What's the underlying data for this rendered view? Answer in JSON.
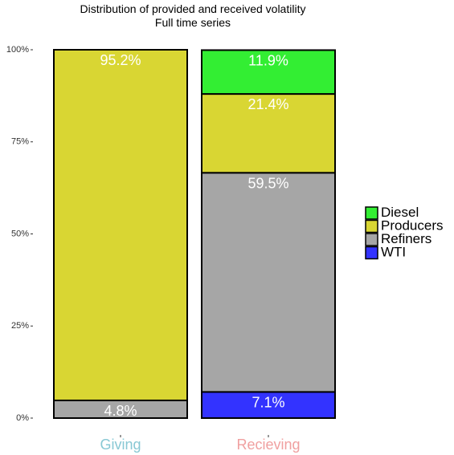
{
  "chart_data": {
    "type": "bar",
    "stacked": true,
    "title": "Distribution of provided and received volatility",
    "subtitle": "Full time series",
    "categories": [
      "Giving",
      "Recieving"
    ],
    "category_colors": [
      "#88c8d4",
      "#f0a0a0"
    ],
    "ylim": [
      0,
      100
    ],
    "yticks": [
      0,
      25,
      50,
      75,
      100
    ],
    "ytick_labels": [
      "0%",
      "25%",
      "50%",
      "75%",
      "100%"
    ],
    "series": [
      {
        "name": "WTI",
        "color": "#3333ff",
        "values": [
          0,
          7.1
        ],
        "labels": [
          "",
          "7.1%"
        ]
      },
      {
        "name": "Refiners",
        "color": "#a6a6a6",
        "values": [
          4.8,
          59.5
        ],
        "labels": [
          "4.8%",
          "59.5%"
        ]
      },
      {
        "name": "Producers",
        "color": "#d9d633",
        "values": [
          95.2,
          21.4
        ],
        "labels": [
          "95.2%",
          "21.4%"
        ]
      },
      {
        "name": "Diesel",
        "color": "#33ee33",
        "values": [
          0,
          11.9
        ],
        "labels": [
          "",
          "11.9%"
        ]
      }
    ],
    "legend_order": [
      "Diesel",
      "Producers",
      "Refiners",
      "WTI"
    ],
    "legend_position": "right",
    "grid": false
  }
}
